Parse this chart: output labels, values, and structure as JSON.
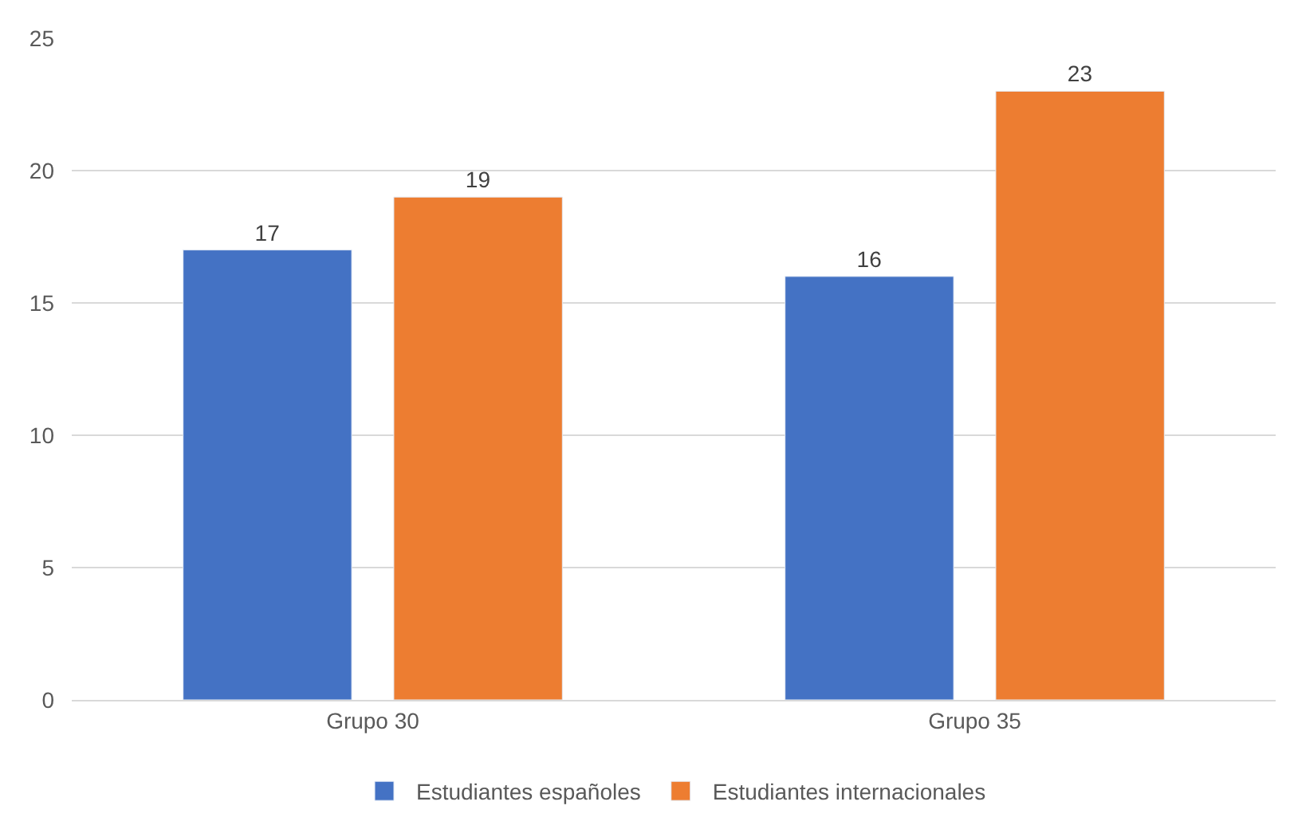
{
  "chart_data": {
    "type": "bar",
    "categories": [
      "Grupo 30",
      "Grupo 35"
    ],
    "series": [
      {
        "name": "Estudiantes españoles",
        "color": "#4472c4",
        "values": [
          17,
          16
        ]
      },
      {
        "name": "Estudiantes internacionales",
        "color": "#ed7d31",
        "values": [
          19,
          23
        ]
      }
    ],
    "ylim": [
      0,
      25
    ],
    "yticks": [
      0,
      5,
      10,
      15,
      20,
      25
    ],
    "grid": "y",
    "legend": "bottom",
    "data_labels": true
  }
}
